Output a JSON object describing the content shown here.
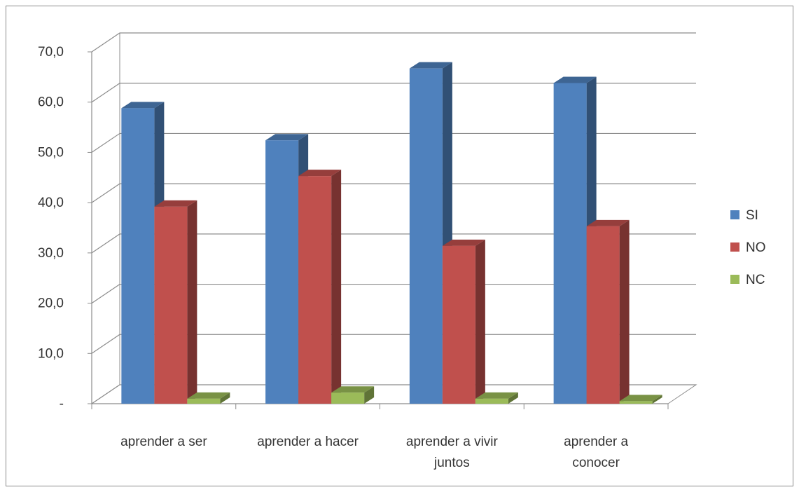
{
  "chart_data": {
    "type": "bar",
    "style": "3d-clustered-column",
    "categories": [
      [
        "aprender a ser"
      ],
      [
        "aprender a hacer"
      ],
      [
        "aprender a vivir",
        "juntos"
      ],
      [
        "aprender a",
        "conocer"
      ]
    ],
    "series": [
      {
        "name": "SI",
        "color": "#4f81bd",
        "values": [
          58.8,
          52.4,
          66.7,
          63.8
        ]
      },
      {
        "name": "NO",
        "color": "#c0504d",
        "values": [
          39.2,
          45.3,
          31.4,
          35.3
        ]
      },
      {
        "name": "NC",
        "color": "#9bbb59",
        "values": [
          1.0,
          2.2,
          1.0,
          0.5
        ]
      }
    ],
    "y_ticks": [
      "-",
      "10,0",
      "20,0",
      "30,0",
      "40,0",
      "50,0",
      "60,0",
      "70,0"
    ],
    "ylim": [
      0,
      70
    ],
    "grid": true,
    "legend": "right",
    "title": "",
    "xlabel": "",
    "ylabel": ""
  }
}
